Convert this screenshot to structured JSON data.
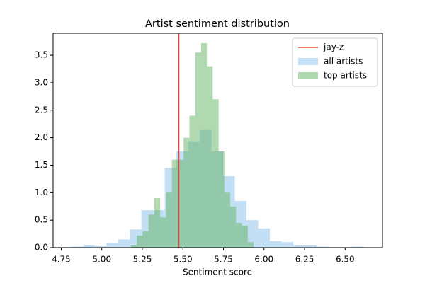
{
  "chart_data": {
    "type": "histogram",
    "title": "Artist sentiment distribution",
    "xlabel": "Sentiment score",
    "xlim": [
      4.7,
      6.73
    ],
    "ylim": [
      0,
      3.9
    ],
    "xticks": [
      4.75,
      {
        "value": 5.0,
        "label": "5.00"
      },
      5.25,
      {
        "value": 5.5,
        "label": "5.50"
      },
      5.75,
      {
        "value": 6.0,
        "label": "6.00"
      },
      6.25,
      {
        "value": 6.5,
        "label": "6.50"
      }
    ],
    "yticks": [
      {
        "value": 0,
        "label": "0.0"
      },
      0.5,
      {
        "value": 1,
        "label": "1.0"
      },
      1.5,
      {
        "value": 2,
        "label": "2.0"
      },
      2.5,
      {
        "value": 3,
        "label": "3.0"
      },
      3.5
    ],
    "legend": "upper right",
    "vline": {
      "name": "jay-z",
      "value": 5.475,
      "color": "#e24a33"
    },
    "series": [
      {
        "name": "all artists",
        "color": "#87bfec",
        "bins": [
          4.74,
          4.812,
          4.884,
          4.956,
          5.028,
          5.1,
          5.172,
          5.244,
          5.316,
          5.388,
          5.46,
          5.532,
          5.604,
          5.676,
          5.748,
          5.82,
          5.892,
          5.964,
          6.036,
          6.108,
          6.18,
          6.252,
          6.324,
          6.396,
          6.468,
          6.54,
          6.612
        ],
        "values": [
          0.01,
          0.02,
          0.05,
          0.03,
          0.08,
          0.15,
          0.33,
          0.68,
          0.68,
          1.45,
          1.75,
          1.92,
          2.14,
          1.75,
          1.3,
          0.85,
          0.5,
          0.35,
          0.12,
          0.1,
          0.05,
          0.05,
          0.02,
          0.01,
          0.01,
          0.02
        ]
      },
      {
        "name": "top artists",
        "color": "#62b462",
        "bins": [
          5.18,
          5.216,
          5.252,
          5.288,
          5.324,
          5.36,
          5.396,
          5.432,
          5.468,
          5.504,
          5.54,
          5.576,
          5.612,
          5.648,
          5.684,
          5.72,
          5.756,
          5.792,
          5.828,
          5.864,
          5.9,
          5.936
        ],
        "values": [
          0.05,
          0.22,
          0.3,
          0.6,
          0.9,
          0.55,
          1.0,
          1.6,
          1.6,
          2.0,
          2.4,
          3.55,
          3.72,
          3.3,
          2.7,
          1.75,
          1.0,
          0.75,
          0.45,
          0.4,
          0.1
        ]
      }
    ]
  }
}
